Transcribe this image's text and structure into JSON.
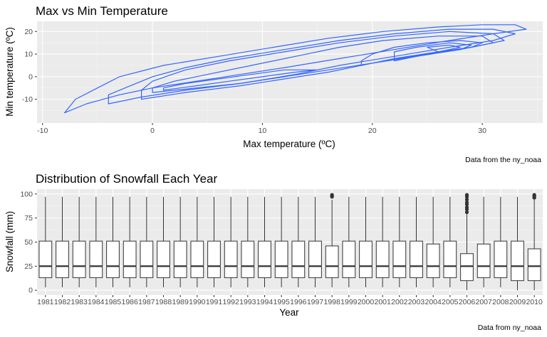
{
  "chart_data": [
    {
      "type": "contour",
      "title": "Max vs Min Temperature",
      "xlabel": "Max temperature (ºC)",
      "ylabel": "Min temperature (ºC)",
      "caption": "Data from the ny_noaa",
      "xlim": [
        -10.5,
        35.5
      ],
      "ylim": [
        -20.5,
        24.5
      ],
      "x_ticks": [
        -10,
        0,
        10,
        20,
        30
      ],
      "y_ticks": [
        -10,
        0,
        10,
        20
      ],
      "grid": true,
      "contour_color": "#3366ff",
      "background": "#ebebeb",
      "contours": [
        [
          [
            -8,
            -16
          ],
          [
            -6,
            -12
          ],
          [
            -3,
            -8
          ],
          [
            0,
            -5
          ],
          [
            4,
            -2
          ],
          [
            8,
            1
          ],
          [
            12,
            4
          ],
          [
            17,
            8
          ],
          [
            22,
            12
          ],
          [
            27,
            16
          ],
          [
            31,
            19
          ],
          [
            34,
            21
          ],
          [
            33,
            23
          ],
          [
            30,
            23
          ],
          [
            26,
            22
          ],
          [
            21,
            20
          ],
          [
            16,
            17
          ],
          [
            11,
            13
          ],
          [
            6,
            9
          ],
          [
            1,
            5
          ],
          [
            -3,
            0
          ],
          [
            -5,
            -5
          ],
          [
            -7,
            -10
          ],
          [
            -8,
            -16
          ]
        ],
        [
          [
            -4,
            -12
          ],
          [
            -1,
            -9
          ],
          [
            3,
            -6
          ],
          [
            8,
            -3
          ],
          [
            13,
            1
          ],
          [
            17,
            5
          ],
          [
            22,
            9
          ],
          [
            27,
            13
          ],
          [
            31,
            16
          ],
          [
            33,
            19
          ],
          [
            31,
            21
          ],
          [
            27,
            21
          ],
          [
            22,
            19
          ],
          [
            17,
            16
          ],
          [
            12,
            12
          ],
          [
            7,
            8
          ],
          [
            3,
            4
          ],
          [
            0,
            0
          ],
          [
            -2,
            -4
          ],
          [
            -4,
            -8
          ],
          [
            -4,
            -12
          ]
        ],
        [
          [
            -1,
            -10
          ],
          [
            3,
            -7
          ],
          [
            8,
            -4
          ],
          [
            12,
            -1
          ],
          [
            16,
            2
          ],
          [
            20,
            6
          ],
          [
            25,
            10
          ],
          [
            29,
            13
          ],
          [
            32,
            16
          ],
          [
            31,
            19
          ],
          [
            27,
            20
          ],
          [
            22,
            18
          ],
          [
            17,
            15
          ],
          [
            12,
            11
          ],
          [
            7,
            7
          ],
          [
            3,
            3
          ],
          [
            0,
            -2
          ],
          [
            -1,
            -6
          ],
          [
            -1,
            -10
          ]
        ],
        [
          [
            0,
            -7
          ],
          [
            4,
            -5
          ],
          [
            8,
            -3
          ],
          [
            12,
            0
          ],
          [
            16,
            3
          ],
          [
            20,
            6
          ],
          [
            24,
            9
          ],
          [
            28,
            12
          ],
          [
            31,
            15
          ],
          [
            30,
            18
          ],
          [
            26,
            18
          ],
          [
            21,
            16
          ],
          [
            17,
            13
          ],
          [
            13,
            9
          ],
          [
            9,
            5
          ],
          [
            5,
            1
          ],
          [
            2,
            -2
          ],
          [
            0,
            -5
          ],
          [
            0,
            -7
          ]
        ],
        [
          [
            1,
            -6
          ],
          [
            4,
            -4
          ],
          [
            7,
            -2
          ],
          [
            10,
            0
          ],
          [
            13,
            2
          ],
          [
            15,
            3
          ],
          [
            12,
            3
          ],
          [
            9,
            1
          ],
          [
            6,
            -1
          ],
          [
            3,
            -3
          ],
          [
            1,
            -5
          ],
          [
            1,
            -6
          ]
        ],
        [
          [
            19,
            5
          ],
          [
            22,
            8
          ],
          [
            26,
            11
          ],
          [
            29,
            13
          ],
          [
            30,
            15
          ],
          [
            28,
            16
          ],
          [
            25,
            15
          ],
          [
            22,
            13
          ],
          [
            20,
            10
          ],
          [
            19,
            7
          ],
          [
            19,
            5
          ]
        ],
        [
          [
            22,
            7
          ],
          [
            25,
            10
          ],
          [
            28,
            12
          ],
          [
            29,
            14
          ],
          [
            27,
            15
          ],
          [
            24,
            13
          ],
          [
            22,
            11
          ],
          [
            22,
            7
          ]
        ],
        [
          [
            26,
            11
          ],
          [
            28,
            13
          ],
          [
            27,
            14
          ],
          [
            25,
            13
          ],
          [
            26,
            11
          ]
        ]
      ]
    },
    {
      "type": "boxplot",
      "title": "Distribution of Snowfall Each Year",
      "xlabel": "Year",
      "ylabel": "Snowfall (mm)",
      "caption": "Data from ny_noaa",
      "ylim": [
        -5,
        105
      ],
      "y_ticks": [
        0,
        25,
        50,
        75,
        100
      ],
      "grid": true,
      "box_fill": "#ffffff",
      "box_stroke": "#333333",
      "categories": [
        "1981",
        "1982",
        "1983",
        "1984",
        "1985",
        "1986",
        "1987",
        "1988",
        "1989",
        "1990",
        "1991",
        "1992",
        "1993",
        "1994",
        "1995",
        "1996",
        "1997",
        "1998",
        "1999",
        "2000",
        "2001",
        "2002",
        "2003",
        "2004",
        "2005",
        "2006",
        "2007",
        "2008",
        "2009",
        "2010"
      ],
      "boxes": [
        {
          "min": 3,
          "q1": 13,
          "median": 25,
          "q3": 51,
          "max": 97,
          "outliers": []
        },
        {
          "min": 3,
          "q1": 13,
          "median": 25,
          "q3": 51,
          "max": 97,
          "outliers": []
        },
        {
          "min": 3,
          "q1": 13,
          "median": 25,
          "q3": 51,
          "max": 97,
          "outliers": []
        },
        {
          "min": 3,
          "q1": 13,
          "median": 25,
          "q3": 51,
          "max": 97,
          "outliers": []
        },
        {
          "min": 3,
          "q1": 13,
          "median": 25,
          "q3": 51,
          "max": 97,
          "outliers": []
        },
        {
          "min": 3,
          "q1": 13,
          "median": 25,
          "q3": 51,
          "max": 97,
          "outliers": []
        },
        {
          "min": 3,
          "q1": 13,
          "median": 25,
          "q3": 51,
          "max": 97,
          "outliers": []
        },
        {
          "min": 3,
          "q1": 13,
          "median": 25,
          "q3": 51,
          "max": 97,
          "outliers": []
        },
        {
          "min": 3,
          "q1": 13,
          "median": 25,
          "q3": 51,
          "max": 97,
          "outliers": []
        },
        {
          "min": 3,
          "q1": 13,
          "median": 25,
          "q3": 51,
          "max": 97,
          "outliers": []
        },
        {
          "min": 3,
          "q1": 13,
          "median": 25,
          "q3": 51,
          "max": 97,
          "outliers": []
        },
        {
          "min": 3,
          "q1": 13,
          "median": 25,
          "q3": 51,
          "max": 97,
          "outliers": []
        },
        {
          "min": 3,
          "q1": 13,
          "median": 25,
          "q3": 51,
          "max": 97,
          "outliers": []
        },
        {
          "min": 3,
          "q1": 13,
          "median": 25,
          "q3": 51,
          "max": 97,
          "outliers": []
        },
        {
          "min": 3,
          "q1": 13,
          "median": 25,
          "q3": 51,
          "max": 97,
          "outliers": []
        },
        {
          "min": 3,
          "q1": 13,
          "median": 25,
          "q3": 51,
          "max": 97,
          "outliers": []
        },
        {
          "min": 3,
          "q1": 13,
          "median": 25,
          "q3": 51,
          "max": 97,
          "outliers": []
        },
        {
          "min": 3,
          "q1": 13,
          "median": 25,
          "q3": 46,
          "max": 94,
          "outliers": [
            97,
            98,
            99
          ]
        },
        {
          "min": 3,
          "q1": 13,
          "median": 25,
          "q3": 51,
          "max": 97,
          "outliers": []
        },
        {
          "min": 3,
          "q1": 13,
          "median": 25,
          "q3": 51,
          "max": 97,
          "outliers": []
        },
        {
          "min": 3,
          "q1": 13,
          "median": 25,
          "q3": 51,
          "max": 97,
          "outliers": []
        },
        {
          "min": 3,
          "q1": 13,
          "median": 25,
          "q3": 51,
          "max": 97,
          "outliers": []
        },
        {
          "min": 3,
          "q1": 13,
          "median": 25,
          "q3": 51,
          "max": 97,
          "outliers": []
        },
        {
          "min": 3,
          "q1": 13,
          "median": 25,
          "q3": 48,
          "max": 97,
          "outliers": []
        },
        {
          "min": 3,
          "q1": 13,
          "median": 25,
          "q3": 51,
          "max": 97,
          "outliers": []
        },
        {
          "min": 0,
          "q1": 10,
          "median": 25,
          "q3": 38,
          "max": 79,
          "outliers": [
            81,
            84,
            86,
            89,
            91,
            94,
            97,
            99
          ]
        },
        {
          "min": 3,
          "q1": 13,
          "median": 25,
          "q3": 48,
          "max": 97,
          "outliers": []
        },
        {
          "min": 3,
          "q1": 13,
          "median": 25,
          "q3": 51,
          "max": 97,
          "outliers": []
        },
        {
          "min": 0,
          "q1": 10,
          "median": 25,
          "q3": 51,
          "max": 97,
          "outliers": []
        },
        {
          "min": 0,
          "q1": 10,
          "median": 25,
          "q3": 43,
          "max": 94,
          "outliers": [
            96,
            97,
            98,
            99
          ]
        }
      ]
    }
  ]
}
